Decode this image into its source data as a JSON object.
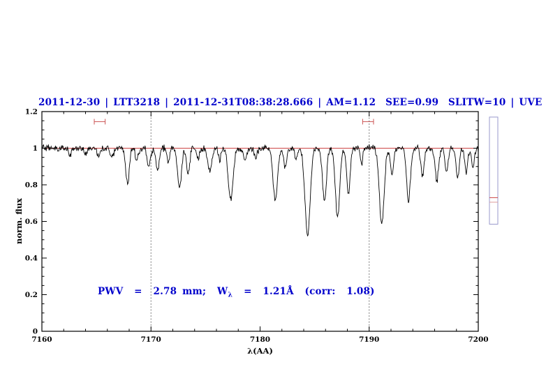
{
  "title": "2011-12-30 | LTT3218 | 2011-12-31T08:38:28.666 | AM=1.12  SEE=0.99  SLITW=10 | UVE",
  "annotation": {
    "part1": "PWV  =  2.78 mm;  W",
    "sub": "λ",
    "part2": "  =  1.21Å  (corr:  1.08)"
  },
  "colors": {
    "title": "#0000cc",
    "annotation": "#0000cc",
    "spectrum": "#000000",
    "continuum": "#cc4444",
    "marker": "#cc5555",
    "axis": "#000000",
    "guide": "#555555",
    "side_panel_border": "#9999cc"
  },
  "chart_data": {
    "type": "line",
    "title": "2011-12-30 | LTT3218 | 2011-12-31T08:38:28.666 | AM=1.12 SEE=0.99 SLITW=10 | UVE",
    "xlabel": "λ(AA)",
    "ylabel": "norm. flux",
    "xlim": [
      7160,
      7200
    ],
    "ylim": [
      0,
      1.2
    ],
    "xticks": [
      7160,
      7170,
      7180,
      7190,
      7200
    ],
    "xtick_labels": [
      "7160",
      "7170",
      "7180",
      "7190",
      "7200"
    ],
    "yticks": [
      0,
      0.2,
      0.4,
      0.6,
      0.8,
      1,
      1.2
    ],
    "ytick_labels": [
      "0",
      "0.2",
      "0.4",
      "0.6",
      "0.8",
      "1",
      "1.2"
    ],
    "minor_x_step": 2,
    "minor_y_step": 0.05,
    "grid": false,
    "dotted_guides_x": [
      7170,
      7190
    ],
    "continuum_level": 1.0,
    "noise_sigma": 0.009,
    "sample_step": 0.05,
    "absorption_lines": [
      [
        7162.6,
        0.03,
        0.15
      ],
      [
        7164.0,
        0.03,
        0.12
      ],
      [
        7165.2,
        0.04,
        0.15
      ],
      [
        7166.4,
        0.05,
        0.15
      ],
      [
        7167.85,
        0.19,
        0.16
      ],
      [
        7168.7,
        0.07,
        0.12
      ],
      [
        7169.8,
        0.1,
        0.15
      ],
      [
        7170.6,
        0.12,
        0.15
      ],
      [
        7171.6,
        0.08,
        0.12
      ],
      [
        7172.6,
        0.22,
        0.18
      ],
      [
        7173.4,
        0.14,
        0.15
      ],
      [
        7174.3,
        0.06,
        0.12
      ],
      [
        7175.4,
        0.13,
        0.18
      ],
      [
        7176.3,
        0.06,
        0.12
      ],
      [
        7177.3,
        0.28,
        0.22
      ],
      [
        7178.6,
        0.07,
        0.15
      ],
      [
        7179.6,
        0.05,
        0.12
      ],
      [
        7181.4,
        0.29,
        0.2
      ],
      [
        7182.3,
        0.1,
        0.14
      ],
      [
        7183.3,
        0.06,
        0.12
      ],
      [
        7184.35,
        0.48,
        0.24
      ],
      [
        7185.9,
        0.29,
        0.18
      ],
      [
        7187.1,
        0.38,
        0.2
      ],
      [
        7188.1,
        0.25,
        0.16
      ],
      [
        7189.3,
        0.08,
        0.12
      ],
      [
        7191.15,
        0.42,
        0.22
      ],
      [
        7192.1,
        0.14,
        0.14
      ],
      [
        7193.6,
        0.28,
        0.18
      ],
      [
        7194.9,
        0.15,
        0.15
      ],
      [
        7196.2,
        0.18,
        0.16
      ],
      [
        7197.1,
        0.13,
        0.14
      ],
      [
        7198.1,
        0.16,
        0.15
      ],
      [
        7198.9,
        0.13,
        0.13
      ],
      [
        7199.5,
        0.1,
        0.13
      ]
    ],
    "range_markers": [
      {
        "x1": 7164.8,
        "x2": 7165.8,
        "y": 1.145
      },
      {
        "x1": 7189.4,
        "x2": 7190.4,
        "y": 1.145
      }
    ]
  },
  "side_panel": {
    "x": 701,
    "width": 12,
    "top_flux": 1.17,
    "bottom_flux": 0.585,
    "lines": [
      {
        "flux": 0.73,
        "color": "#cc4444"
      },
      {
        "flux": 0.705,
        "color": "#dd9999"
      }
    ]
  }
}
